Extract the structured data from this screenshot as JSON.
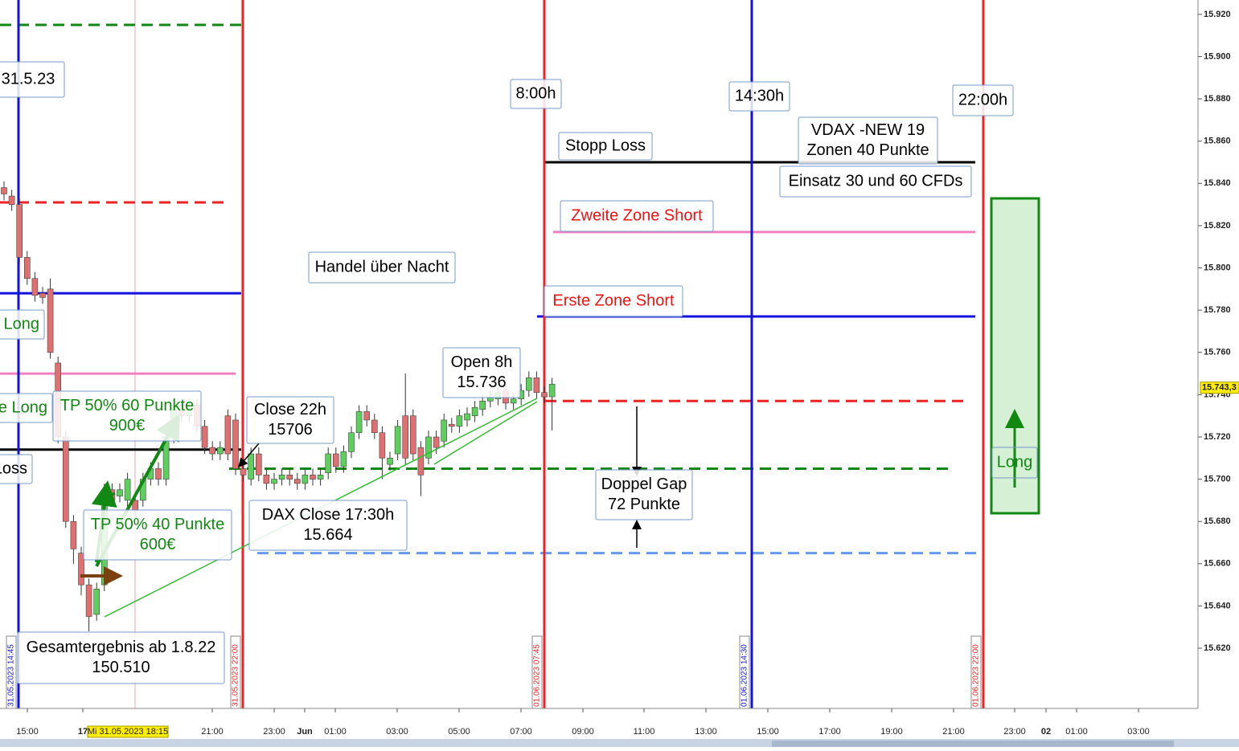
{
  "chart_data": {
    "type": "candlestick",
    "ylim": [
      15591.5,
      15926.8
    ],
    "yticks": [
      {
        "value": 15620,
        "label": "15.620"
      },
      {
        "value": 15640,
        "label": "15.640"
      },
      {
        "value": 15660,
        "label": "15.660"
      },
      {
        "value": 15680,
        "label": "15.680"
      },
      {
        "value": 15700,
        "label": "15.700"
      },
      {
        "value": 15720,
        "label": "15.720"
      },
      {
        "value": 15740,
        "label": "15.740"
      },
      {
        "value": 15760,
        "label": "15.760"
      },
      {
        "value": 15780,
        "label": "15.780"
      },
      {
        "value": 15800,
        "label": "15.800"
      },
      {
        "value": 15820,
        "label": "15.820"
      },
      {
        "value": 15840,
        "label": "15.840"
      },
      {
        "value": 15860,
        "label": "15.860"
      },
      {
        "value": 15880,
        "label": "15.880"
      },
      {
        "value": 15900,
        "label": "15.900"
      },
      {
        "value": 15920,
        "label": "15.920"
      }
    ],
    "last_price": {
      "value": 15743.3,
      "label": "15.743,3"
    },
    "xticks": [
      "15:00",
      "17",
      "21:00",
      "23:00",
      "Jun",
      "01:00",
      "03:00",
      "05:00",
      "07:00",
      "09:00",
      "11:00",
      "13:00",
      "15:00",
      "17:00",
      "19:00",
      "21:00",
      "23:00",
      "02",
      "01:00",
      "03:00"
    ],
    "cursor_label": "Mi 31.05.2023 18:15",
    "up_color": "#5ccf5c",
    "down_color": "#e07070",
    "candles": {
      "open": [
        15838,
        15834,
        15830,
        15805,
        15795,
        15788,
        15790,
        15755,
        15720,
        15680,
        15665,
        15650,
        15636,
        15650,
        15695,
        15692,
        15690,
        15690,
        15690,
        15700,
        15705,
        15700,
        15720,
        15735,
        15730,
        15735,
        15725,
        15715,
        15712,
        15730,
        15728,
        15705,
        15700,
        15712,
        15702,
        15698,
        15700,
        15702,
        15700,
        15698,
        15702,
        15700,
        15703,
        15712,
        15706,
        15713,
        15722,
        15732,
        15728,
        15722,
        15707,
        15712,
        15730,
        15730,
        15715,
        15710,
        15720,
        15718,
        15726,
        15725,
        15728,
        15730,
        15733,
        15737,
        15738,
        15742,
        15736,
        15738,
        15742,
        15748,
        15741,
        15739
      ],
      "high": [
        15841,
        15837,
        15833,
        15808,
        15798,
        15791,
        15795,
        15758,
        15723,
        15683,
        15668,
        15653,
        15651,
        15698,
        15698,
        15698,
        15703,
        15693,
        15703,
        15708,
        15708,
        15723,
        15738,
        15738,
        15738,
        15738,
        15728,
        15718,
        15718,
        15733,
        15731,
        15708,
        15715,
        15715,
        15705,
        15703,
        15705,
        15705,
        15703,
        15705,
        15705,
        15705,
        15715,
        15715,
        15716,
        15725,
        15735,
        15735,
        15731,
        15725,
        15713,
        15728,
        15750,
        15733,
        15718,
        15723,
        15723,
        15731,
        15729,
        15733,
        15734,
        15737,
        15740,
        15742,
        15744,
        15745,
        15741,
        15745,
        15751,
        15751,
        15744,
        15748
      ],
      "low": [
        15832,
        15827,
        15802,
        15792,
        15784,
        15783,
        15757,
        15717,
        15677,
        15660,
        15645,
        15628,
        15633,
        15647,
        15687,
        15689,
        15687,
        15682,
        15687,
        15697,
        15697,
        15697,
        15717,
        15727,
        15727,
        15722,
        15712,
        15709,
        15709,
        15709,
        15702,
        15699,
        15697,
        15699,
        15695,
        15695,
        15697,
        15697,
        15695,
        15695,
        15697,
        15697,
        15700,
        15703,
        15703,
        15710,
        15719,
        15725,
        15719,
        15700,
        15704,
        15709,
        15707,
        15709,
        15692,
        15707,
        15712,
        15715,
        15722,
        15722,
        15725,
        15727,
        15730,
        15734,
        15735,
        15733,
        15733,
        15735,
        15739,
        15738,
        15736,
        15723
      ],
      "close": [
        15835,
        15830,
        15805,
        15795,
        15787,
        15786,
        15760,
        15720,
        15680,
        15667,
        15650,
        15635,
        15648,
        15695,
        15690,
        15695,
        15700,
        15685,
        15700,
        15705,
        15700,
        15720,
        15735,
        15730,
        15735,
        15725,
        15715,
        15712,
        15715,
        15712,
        15705,
        15702,
        15712,
        15702,
        15698,
        15700,
        15702,
        15700,
        15698,
        15702,
        15700,
        15702,
        15712,
        15706,
        15713,
        15722,
        15732,
        15728,
        15722,
        15710,
        15710,
        15725,
        15710,
        15712,
        15702,
        15720,
        15715,
        15728,
        15725,
        15730,
        15731,
        15734,
        15737,
        15739,
        15741,
        15736,
        15738,
        15742,
        15748,
        15741,
        15739,
        15745
      ]
    },
    "levels": [
      {
        "value": 15915,
        "color": "#118811",
        "dashed": true
      },
      {
        "value": 15831,
        "color": "#ee2222",
        "dashed": true
      },
      {
        "value": 15788,
        "color": "#1111dd",
        "dashed": false
      },
      {
        "value": 15750,
        "color": "#f080c0",
        "dashed": false
      },
      {
        "value": 15714,
        "color": "#000000",
        "dashed": false
      },
      {
        "value": 15850,
        "color": "#000000",
        "dashed": false
      },
      {
        "value": 15817,
        "color": "#f080c0",
        "dashed": false
      },
      {
        "value": 15777,
        "color": "#1111dd",
        "dashed": false
      },
      {
        "value": 15737,
        "color": "#ee2222",
        "dashed": true
      },
      {
        "value": 15705,
        "color": "#118811",
        "dashed": true
      },
      {
        "value": 15665,
        "color": "#6699ee",
        "dashed": true
      }
    ],
    "vlines": [
      {
        "label": "31.05.2023 14:45",
        "color": "#1111dd"
      },
      {
        "label": "31.05.2023 22:00",
        "color": "#ee2222"
      },
      {
        "label": "01.06.2023 07:45",
        "color": "#ee2222"
      },
      {
        "label": "01.06.2023 14:30",
        "color": "#1111dd"
      },
      {
        "label": "01.06.2023 22:00",
        "color": "#ee2222"
      }
    ],
    "annotations": [
      {
        "lines": [
          "31.5.23"
        ],
        "color": "#000000"
      },
      {
        "lines": [
          "8:00h"
        ],
        "color": "#000000"
      },
      {
        "lines": [
          "14:30h"
        ],
        "color": "#000000"
      },
      {
        "lines": [
          "22:00h"
        ],
        "color": "#000000"
      },
      {
        "lines": [
          "VDAX -NEW 19",
          "Zonen 40 Punkte"
        ],
        "color": "#000000"
      },
      {
        "lines": [
          "Einsatz 30 und 60 CFDs"
        ],
        "color": "#000000"
      },
      {
        "lines": [
          "Stopp Loss"
        ],
        "color": "#000000"
      },
      {
        "lines": [
          "Zweite Zone Short"
        ],
        "color": "#ee1111"
      },
      {
        "lines": [
          "Handel über Nacht"
        ],
        "color": "#000000"
      },
      {
        "lines": [
          "Erste Zone Short"
        ],
        "color": "#ee1111"
      },
      {
        "lines": [
          "Open 8h",
          "15.736"
        ],
        "color": "#000000"
      },
      {
        "lines": [
          "Close 22h",
          "15706"
        ],
        "color": "#000000"
      },
      {
        "lines": [
          "TP 50% 60 Punkte",
          "900€"
        ],
        "color": "#118811"
      },
      {
        "lines": [
          "e Long"
        ],
        "color": "#118811"
      },
      {
        "lines": [
          "e Long"
        ],
        "color": "#118811"
      },
      {
        "lines": [
          "Loss"
        ],
        "color": "#000000"
      },
      {
        "lines": [
          "TP 50% 40 Punkte",
          "600€"
        ],
        "color": "#118811"
      },
      {
        "lines": [
          "DAX Close 17:30h",
          "15.664"
        ],
        "color": "#000000"
      },
      {
        "lines": [
          "Doppel Gap",
          "72 Punkte"
        ],
        "color": "#000000"
      },
      {
        "lines": [
          "Gesamtergebnis ab 1.8.22",
          "150.510"
        ],
        "color": "#000000"
      },
      {
        "lines": [
          "Long"
        ],
        "color": "#118811"
      }
    ]
  }
}
